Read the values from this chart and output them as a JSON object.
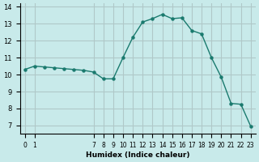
{
  "x": [
    0,
    1,
    2,
    3,
    4,
    5,
    6,
    7,
    8,
    9,
    10,
    11,
    12,
    13,
    14,
    15,
    16,
    17,
    18,
    19,
    20,
    21,
    22,
    23
  ],
  "y": [
    10.3,
    10.5,
    10.45,
    10.4,
    10.35,
    10.3,
    10.25,
    10.15,
    9.75,
    9.75,
    11.0,
    12.2,
    13.1,
    13.3,
    13.55,
    13.3,
    13.35,
    12.6,
    12.4,
    11.0,
    9.85,
    8.3,
    8.25,
    6.95
  ],
  "line_color": "#1a7a6e",
  "marker_color": "#1a7a6e",
  "bg_color": "#c8eaea",
  "grid_color": "#b0c8c8",
  "xlabel": "Humidex (Indice chaleur)",
  "ylim": [
    6.5,
    14.2
  ],
  "xlim": [
    -0.5,
    23.5
  ],
  "yticks": [
    7,
    8,
    9,
    10,
    11,
    12,
    13,
    14
  ],
  "xticks": [
    0,
    1,
    7,
    8,
    9,
    10,
    11,
    12,
    13,
    14,
    15,
    16,
    17,
    18,
    19,
    20,
    21,
    22,
    23
  ]
}
